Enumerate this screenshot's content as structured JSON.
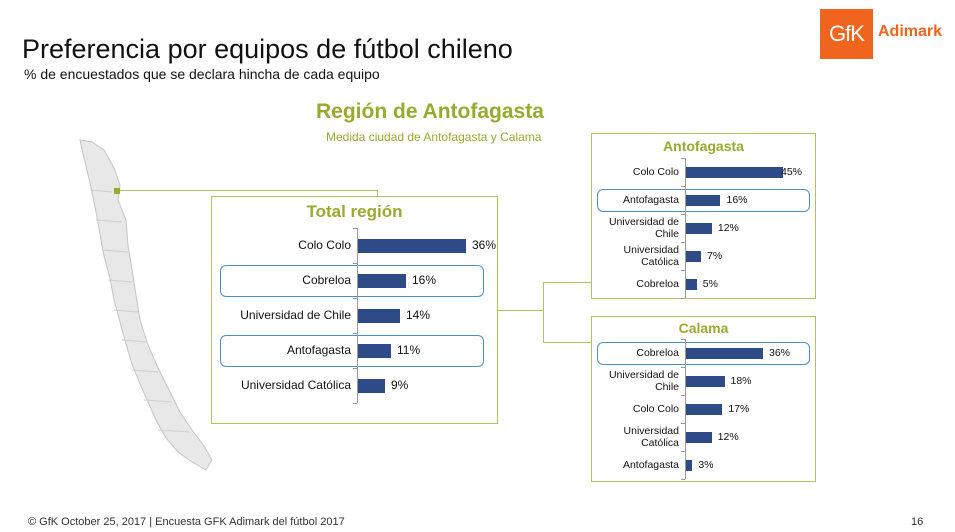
{
  "header": {
    "title": "Preferencia por equipos de fútbol chileno",
    "subtitle": "% de encuestados que se declara hincha de cada equipo"
  },
  "logo": {
    "mark": "GfK",
    "text": "Adimark"
  },
  "region": {
    "title": "Región de Antofagasta",
    "subtitle": "Medida ciudad de Antofagasta y Calama"
  },
  "footer": {
    "text": "© GfK October 25, 2017 | Encuesta GFK Adimark del fútbol 2017",
    "page": "16"
  },
  "colors": {
    "bar": "#2e4a87",
    "accent": "#9aaa2e",
    "highlight": "#4a90c8",
    "logo": "#f0641e"
  },
  "chart_data": [
    {
      "type": "bar",
      "title": "Total región",
      "categories": [
        "Colo Colo",
        "Cobreloa",
        "Universidad de Chile",
        "Antofagasta",
        "Universidad Católica"
      ],
      "values": [
        36,
        16,
        14,
        11,
        9
      ],
      "labels": [
        "36%",
        "16%",
        "14%",
        "11%",
        "9%"
      ],
      "highlighted": [
        "Cobreloa",
        "Antofagasta"
      ]
    },
    {
      "type": "bar",
      "title": "Antofagasta",
      "categories": [
        "Colo Colo",
        "Antofagasta",
        "Universidad de Chile",
        "Universidad Católica",
        "Cobreloa"
      ],
      "values": [
        45,
        16,
        12,
        7,
        5
      ],
      "labels": [
        "45%",
        "16%",
        "12%",
        "7%",
        "5%"
      ],
      "highlighted": [
        "Antofagasta"
      ]
    },
    {
      "type": "bar",
      "title": "Calama",
      "categories": [
        "Cobreloa",
        "Universidad de Chile",
        "Colo Colo",
        "Universidad Católica",
        "Antofagasta"
      ],
      "values": [
        36,
        18,
        17,
        12,
        3
      ],
      "labels": [
        "36%",
        "18%",
        "17%",
        "12%",
        "3%"
      ],
      "highlighted": [
        "Cobreloa"
      ]
    }
  ]
}
